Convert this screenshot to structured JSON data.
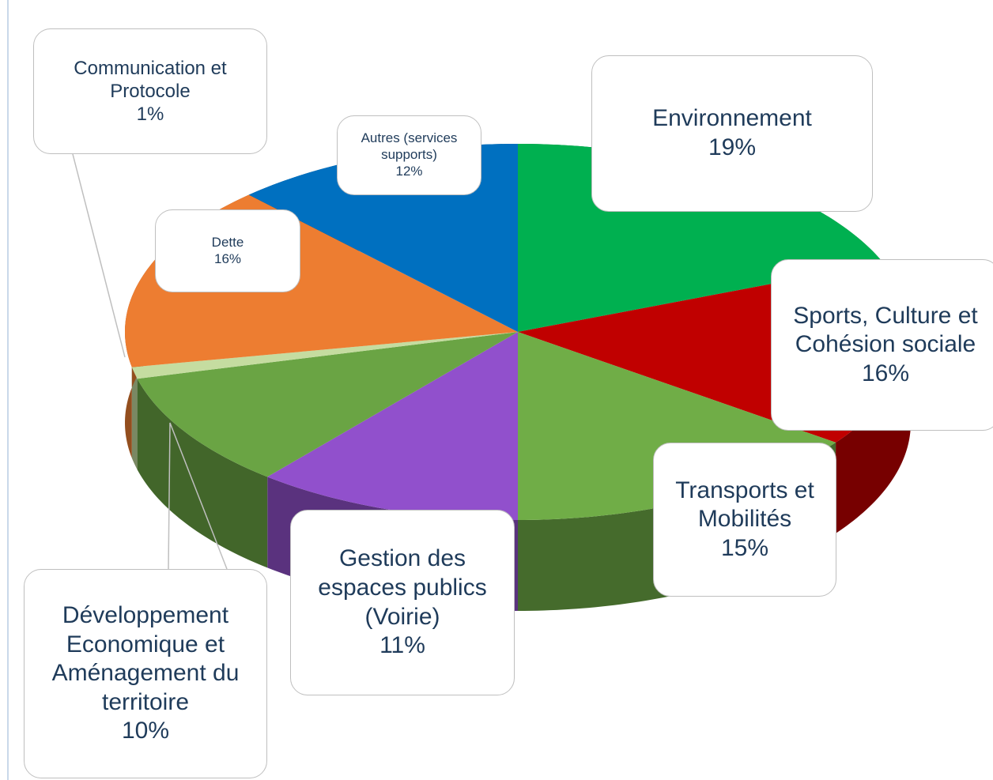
{
  "chart_data": {
    "type": "pie",
    "categories": [
      "Environnement",
      "Sports, Culture et Cohésion sociale",
      "Transports et Mobilités",
      "Gestion des espaces publics (Voirie)",
      "Développement Economique et Aménagement du territoire",
      "Communication et Protocole",
      "Dette",
      "Autres (services supports)"
    ],
    "values": [
      19,
      16,
      15,
      11,
      10,
      1,
      16,
      12
    ],
    "value_labels": [
      "19%",
      "16%",
      "15%",
      "11%",
      "10%",
      "1%",
      "16%",
      "12%"
    ],
    "colors": [
      "#00b050",
      "#c00000",
      "#70ad47",
      "#9150cc",
      "#6aa444",
      "#c5dca0",
      "#ed7d31",
      "#0070c0"
    ]
  }
}
